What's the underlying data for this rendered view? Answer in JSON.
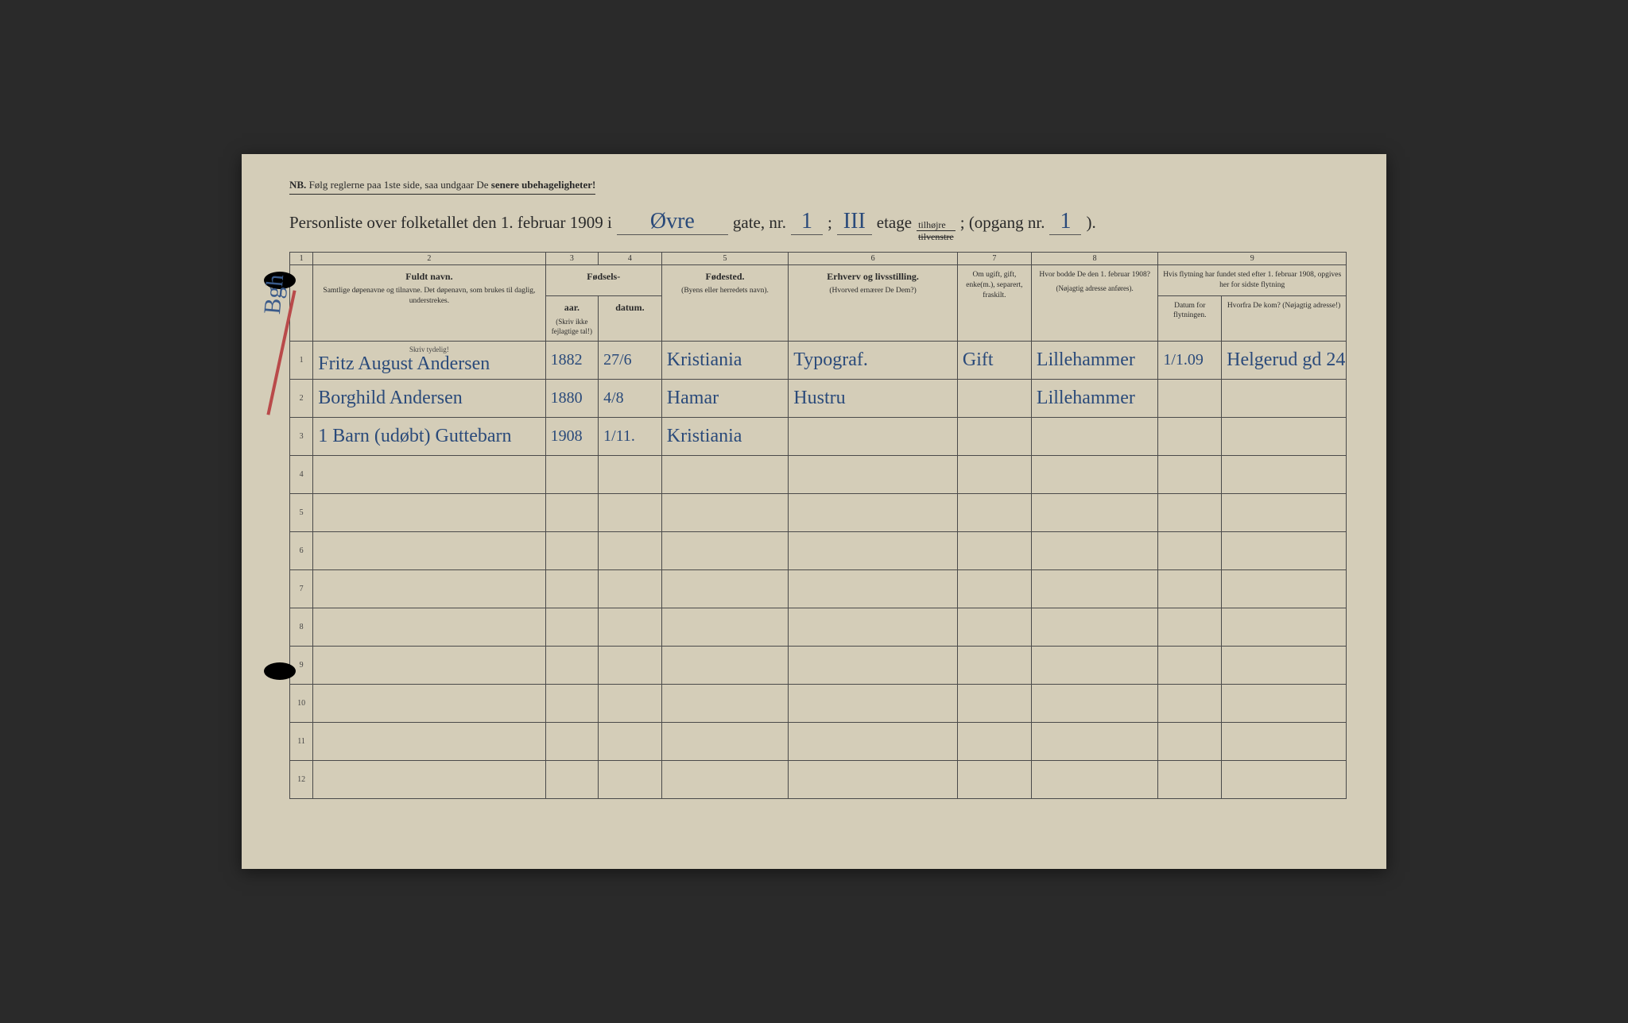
{
  "page": {
    "background": "#d4cdb8",
    "ink": "#2a2a2a",
    "hand_ink": "#2a4a7a",
    "red_ink": "#b94a4a"
  },
  "nb": {
    "prefix": "NB.",
    "text": "Følg reglerne paa 1ste side, saa undgaar De",
    "suffix": "senere ubehageligheter!"
  },
  "title": {
    "t1": "Personliste over folketallet den 1. februar 1909 i",
    "street": "Øvre",
    "t2": "gate, nr.",
    "nr": "1",
    "t3": ";",
    "etage": "III",
    "t4": "etage",
    "til_top": "tilhøjre",
    "til_bot": "tilvenstre",
    "t5": "; (opgang nr.",
    "opgang": "1",
    "t6": ")."
  },
  "colnums": [
    "1",
    "2",
    "3",
    "4",
    "5",
    "6",
    "7",
    "8",
    "9"
  ],
  "headers": {
    "c2_main": "Fuldt navn.",
    "c2_sub": "Samtlige døpenavne og tilnavne. Det døpenavn, som brukes til daglig, understrekes.",
    "c34_group": "Fødsels-",
    "c3": "aar.",
    "c4": "datum.",
    "c34_note": "(Skriv ikke fejlagtige tal!)",
    "c5_main": "Fødested.",
    "c5_sub": "(Byens eller herredets navn).",
    "c6_main": "Erhverv og livsstilling.",
    "c6_sub": "(Hvorved ernærer De Dem?)",
    "c7": "Om ugift, gift, enke(m.), separert, fraskilt.",
    "c8_main": "Hvor bodde De den 1. februar 1908?",
    "c8_sub": "(Nøjagtig adresse anføres).",
    "c9_top": "Hvis flytning har fundet sted efter 1. februar 1908, opgives her for sidste flytning",
    "c9a": "Datum for flytningen.",
    "c9b": "Hvorfra De kom? (Nøjagtig adresse!)",
    "tydelig": "Skriv tydelig!"
  },
  "rows": [
    {
      "n": "1",
      "name": "Fritz August Andersen",
      "aar": "1882",
      "datum": "27/6",
      "fodested": "Kristiania",
      "erhverv": "Typograf.",
      "status": "Gift",
      "bodde": "Lillehammer",
      "flyt_dato": "1/1.09",
      "flyt_fra": "Helgerud gd 24."
    },
    {
      "n": "2",
      "name": "Borghild Andersen",
      "aar": "1880",
      "datum": "4/8",
      "fodested": "Hamar",
      "erhverv": "Hustru",
      "status": "",
      "bodde": "Lillehammer",
      "flyt_dato": "",
      "flyt_fra": ""
    },
    {
      "n": "3",
      "name": "1 Barn (udøbt) Guttebarn",
      "aar": "1908",
      "datum": "1/11.",
      "fodested": "Kristiania",
      "erhverv": "",
      "status": "",
      "bodde": "",
      "flyt_dato": "",
      "flyt_fra": ""
    },
    {
      "n": "4"
    },
    {
      "n": "5"
    },
    {
      "n": "6"
    },
    {
      "n": "7"
    },
    {
      "n": "8"
    },
    {
      "n": "9"
    },
    {
      "n": "10"
    },
    {
      "n": "11"
    },
    {
      "n": "12"
    }
  ],
  "margin_note": "Bgh"
}
